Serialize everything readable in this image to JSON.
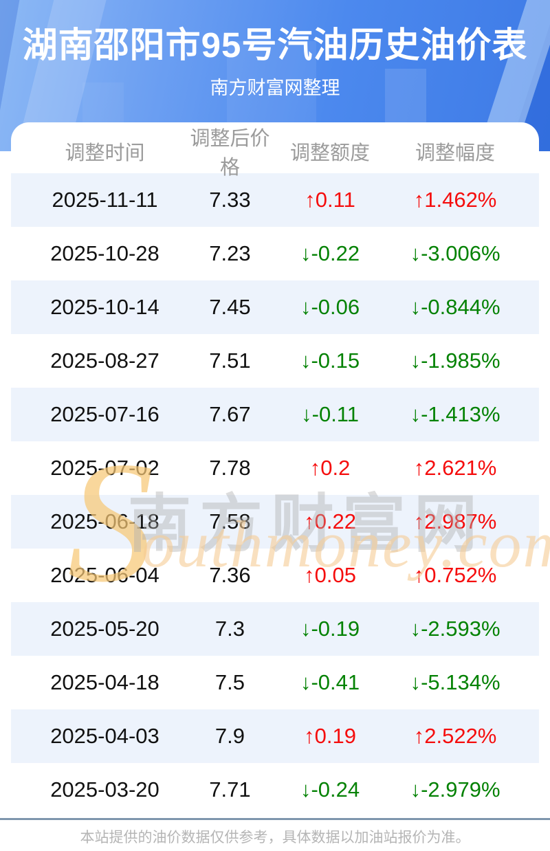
{
  "header": {
    "title": "湖南邵阳市95号汽油历史油价表",
    "subtitle": "南方财富网整理"
  },
  "table": {
    "columns": [
      "调整时间",
      "调整后价格",
      "调整额度",
      "调整幅度"
    ],
    "rows": [
      {
        "date": "2025-11-11",
        "price": "7.33",
        "change": "↑0.11",
        "pct": "↑1.462%",
        "dir": "up"
      },
      {
        "date": "2025-10-28",
        "price": "7.23",
        "change": "↓-0.22",
        "pct": "↓-3.006%",
        "dir": "down"
      },
      {
        "date": "2025-10-14",
        "price": "7.45",
        "change": "↓-0.06",
        "pct": "↓-0.844%",
        "dir": "down"
      },
      {
        "date": "2025-08-27",
        "price": "7.51",
        "change": "↓-0.15",
        "pct": "↓-1.985%",
        "dir": "down"
      },
      {
        "date": "2025-07-16",
        "price": "7.67",
        "change": "↓-0.11",
        "pct": "↓-1.413%",
        "dir": "down"
      },
      {
        "date": "2025-07-02",
        "price": "7.78",
        "change": "↑0.2",
        "pct": "↑2.621%",
        "dir": "up"
      },
      {
        "date": "2025-06-18",
        "price": "7.58",
        "change": "↑0.22",
        "pct": "↑2.987%",
        "dir": "up"
      },
      {
        "date": "2025-06-04",
        "price": "7.36",
        "change": "↑0.05",
        "pct": "↑0.752%",
        "dir": "up"
      },
      {
        "date": "2025-05-20",
        "price": "7.3",
        "change": "↓-0.19",
        "pct": "↓-2.593%",
        "dir": "down"
      },
      {
        "date": "2025-04-18",
        "price": "7.5",
        "change": "↓-0.41",
        "pct": "↓-5.134%",
        "dir": "down"
      },
      {
        "date": "2025-04-03",
        "price": "7.9",
        "change": "↑0.19",
        "pct": "↑2.522%",
        "dir": "up"
      },
      {
        "date": "2025-03-20",
        "price": "7.71",
        "change": "↓-0.24",
        "pct": "↓-2.979%",
        "dir": "down"
      }
    ]
  },
  "chart_data": {
    "type": "table",
    "title": "湖南邵阳市95号汽油历史油价表",
    "columns": [
      "调整时间",
      "调整后价格",
      "调整额度",
      "调整幅度"
    ],
    "rows": [
      [
        "2025-11-11",
        7.33,
        "↑0.11",
        "↑1.462%"
      ],
      [
        "2025-10-28",
        7.23,
        "↓-0.22",
        "↓-3.006%"
      ],
      [
        "2025-10-14",
        7.45,
        "↓-0.06",
        "↓-0.844%"
      ],
      [
        "2025-08-27",
        7.51,
        "↓-0.15",
        "↓-1.985%"
      ],
      [
        "2025-07-16",
        7.67,
        "↓-0.11",
        "↓-1.413%"
      ],
      [
        "2025-07-02",
        7.78,
        "↑0.2",
        "↑2.621%"
      ],
      [
        "2025-06-18",
        7.58,
        "↑0.22",
        "↑2.987%"
      ],
      [
        "2025-06-04",
        7.36,
        "↑0.05",
        "↑0.752%"
      ],
      [
        "2025-05-20",
        7.3,
        "↓-0.19",
        "↓-2.593%"
      ],
      [
        "2025-04-18",
        7.5,
        "↓-0.41",
        "↓-5.134%"
      ],
      [
        "2025-04-03",
        7.9,
        "↑0.19",
        "↑2.522%"
      ],
      [
        "2025-03-20",
        7.71,
        "↓-0.24",
        "↓-2.979%"
      ]
    ]
  },
  "watermark": {
    "s": "S",
    "cn": "南方财富网",
    "en": "outhmoney.com"
  },
  "footer": {
    "note": "本站提供的油价数据仅供参考，具体数据以加油站报价为准。"
  },
  "colors": {
    "up": "#f50d0d",
    "down": "#048204",
    "stripe": "#edf3fc",
    "header_gradient_start": "#8db9f5",
    "header_gradient_end": "#3d7ae6",
    "column_header_text": "#9b9b9b",
    "divider": "#7e96ad",
    "footer_text": "#b5b5b5"
  }
}
